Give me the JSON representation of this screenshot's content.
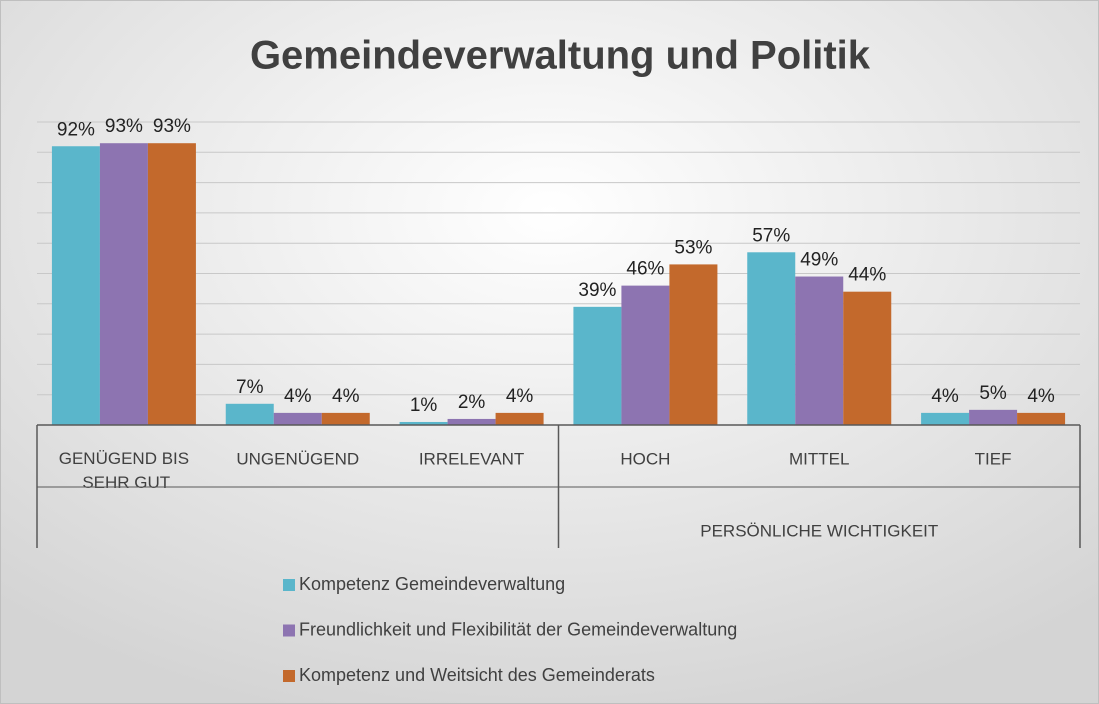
{
  "chart_data": {
    "type": "bar",
    "title": "Gemeindeverwaltung und Politik",
    "categories": [
      "GENÜGEND BIS SEHR GUT",
      "UNGENÜGEND",
      "IRRELEVANT",
      "HOCH",
      "MITTEL",
      "TIEF"
    ],
    "groups": [
      {
        "label": null,
        "span": 3
      },
      {
        "label": "PERSÖNLICHE WICHTIGKEIT",
        "span": 3
      }
    ],
    "series": [
      {
        "name": "Kompetenz Gemeindeverwaltung",
        "color": "#5ab6cb",
        "values": [
          92,
          7,
          1,
          39,
          57,
          4
        ],
        "value_labels": [
          "92%",
          "7%",
          "1%",
          "39%",
          "57%",
          "4%"
        ]
      },
      {
        "name": "Freundlichkeit und Flexibilität der Gemeindeverwaltung",
        "color": "#8d74b1",
        "values": [
          93,
          4,
          2,
          46,
          49,
          5
        ],
        "value_labels": [
          "93%",
          "4%",
          "2%",
          "46%",
          "49%",
          "5%"
        ]
      },
      {
        "name": "Kompetenz und Weitsicht des Gemeinderats",
        "color": "#c3692c",
        "values": [
          93,
          4,
          4,
          53,
          44,
          4
        ],
        "value_labels": [
          "93%",
          "4%",
          "4%",
          "53%",
          "44%",
          "4%"
        ]
      }
    ],
    "ylim": [
      0,
      100
    ],
    "yticks": [
      0,
      10,
      20,
      30,
      40,
      50,
      60,
      70,
      80,
      90,
      100
    ],
    "grid": true,
    "legend": "bottom"
  }
}
